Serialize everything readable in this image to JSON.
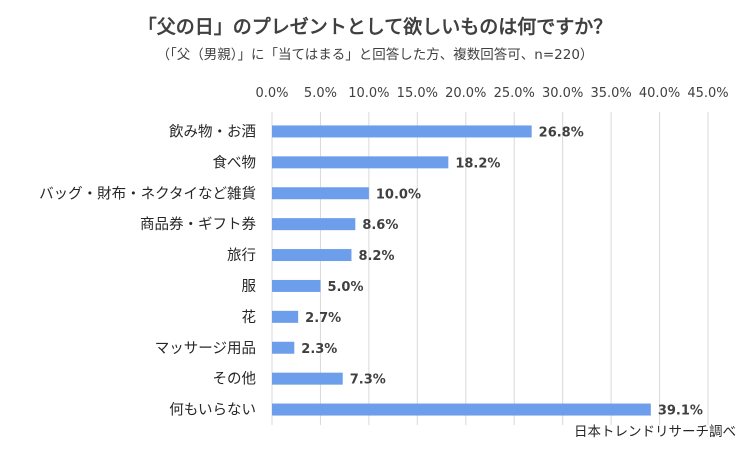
{
  "title": "「父の日」のプレゼントとして欲しいものは何ですか？",
  "subtitle": "（「父（男親）」に「当てはまる」と回答した方、複数回答可、n=220）",
  "source": "日本トレンドリサーチ調べ",
  "colors": {
    "bar": "#6d9eeb",
    "grid": "#d9d9d9"
  },
  "chart_data": {
    "type": "bar",
    "orientation": "horizontal",
    "title": "「父の日」のプレゼントとして欲しいものは何ですか？",
    "subtitle": "（「父（男親）」に「当てはまる」と回答した方、複数回答可、n=220）",
    "categories": [
      "飲み物・お酒",
      "食べ物",
      "バッグ・財布・ネクタイなど雑貨",
      "商品券・ギフト券",
      "旅行",
      "服",
      "花",
      "マッサージ用品",
      "その他",
      "何もいらない"
    ],
    "values": [
      26.8,
      18.2,
      10.0,
      8.6,
      8.2,
      5.0,
      2.7,
      2.3,
      7.3,
      39.1
    ],
    "value_labels": [
      "26.8%",
      "18.2%",
      "10.0%",
      "8.6%",
      "8.2%",
      "5.0%",
      "2.7%",
      "2.3%",
      "7.3%",
      "39.1%"
    ],
    "ticks": [
      "0.0%",
      "5.0%",
      "10.0%",
      "15.0%",
      "20.0%",
      "25.0%",
      "30.0%",
      "35.0%",
      "40.0%",
      "45.0%"
    ],
    "xlim": [
      0,
      45
    ],
    "grid": true,
    "axis_position": "top"
  }
}
